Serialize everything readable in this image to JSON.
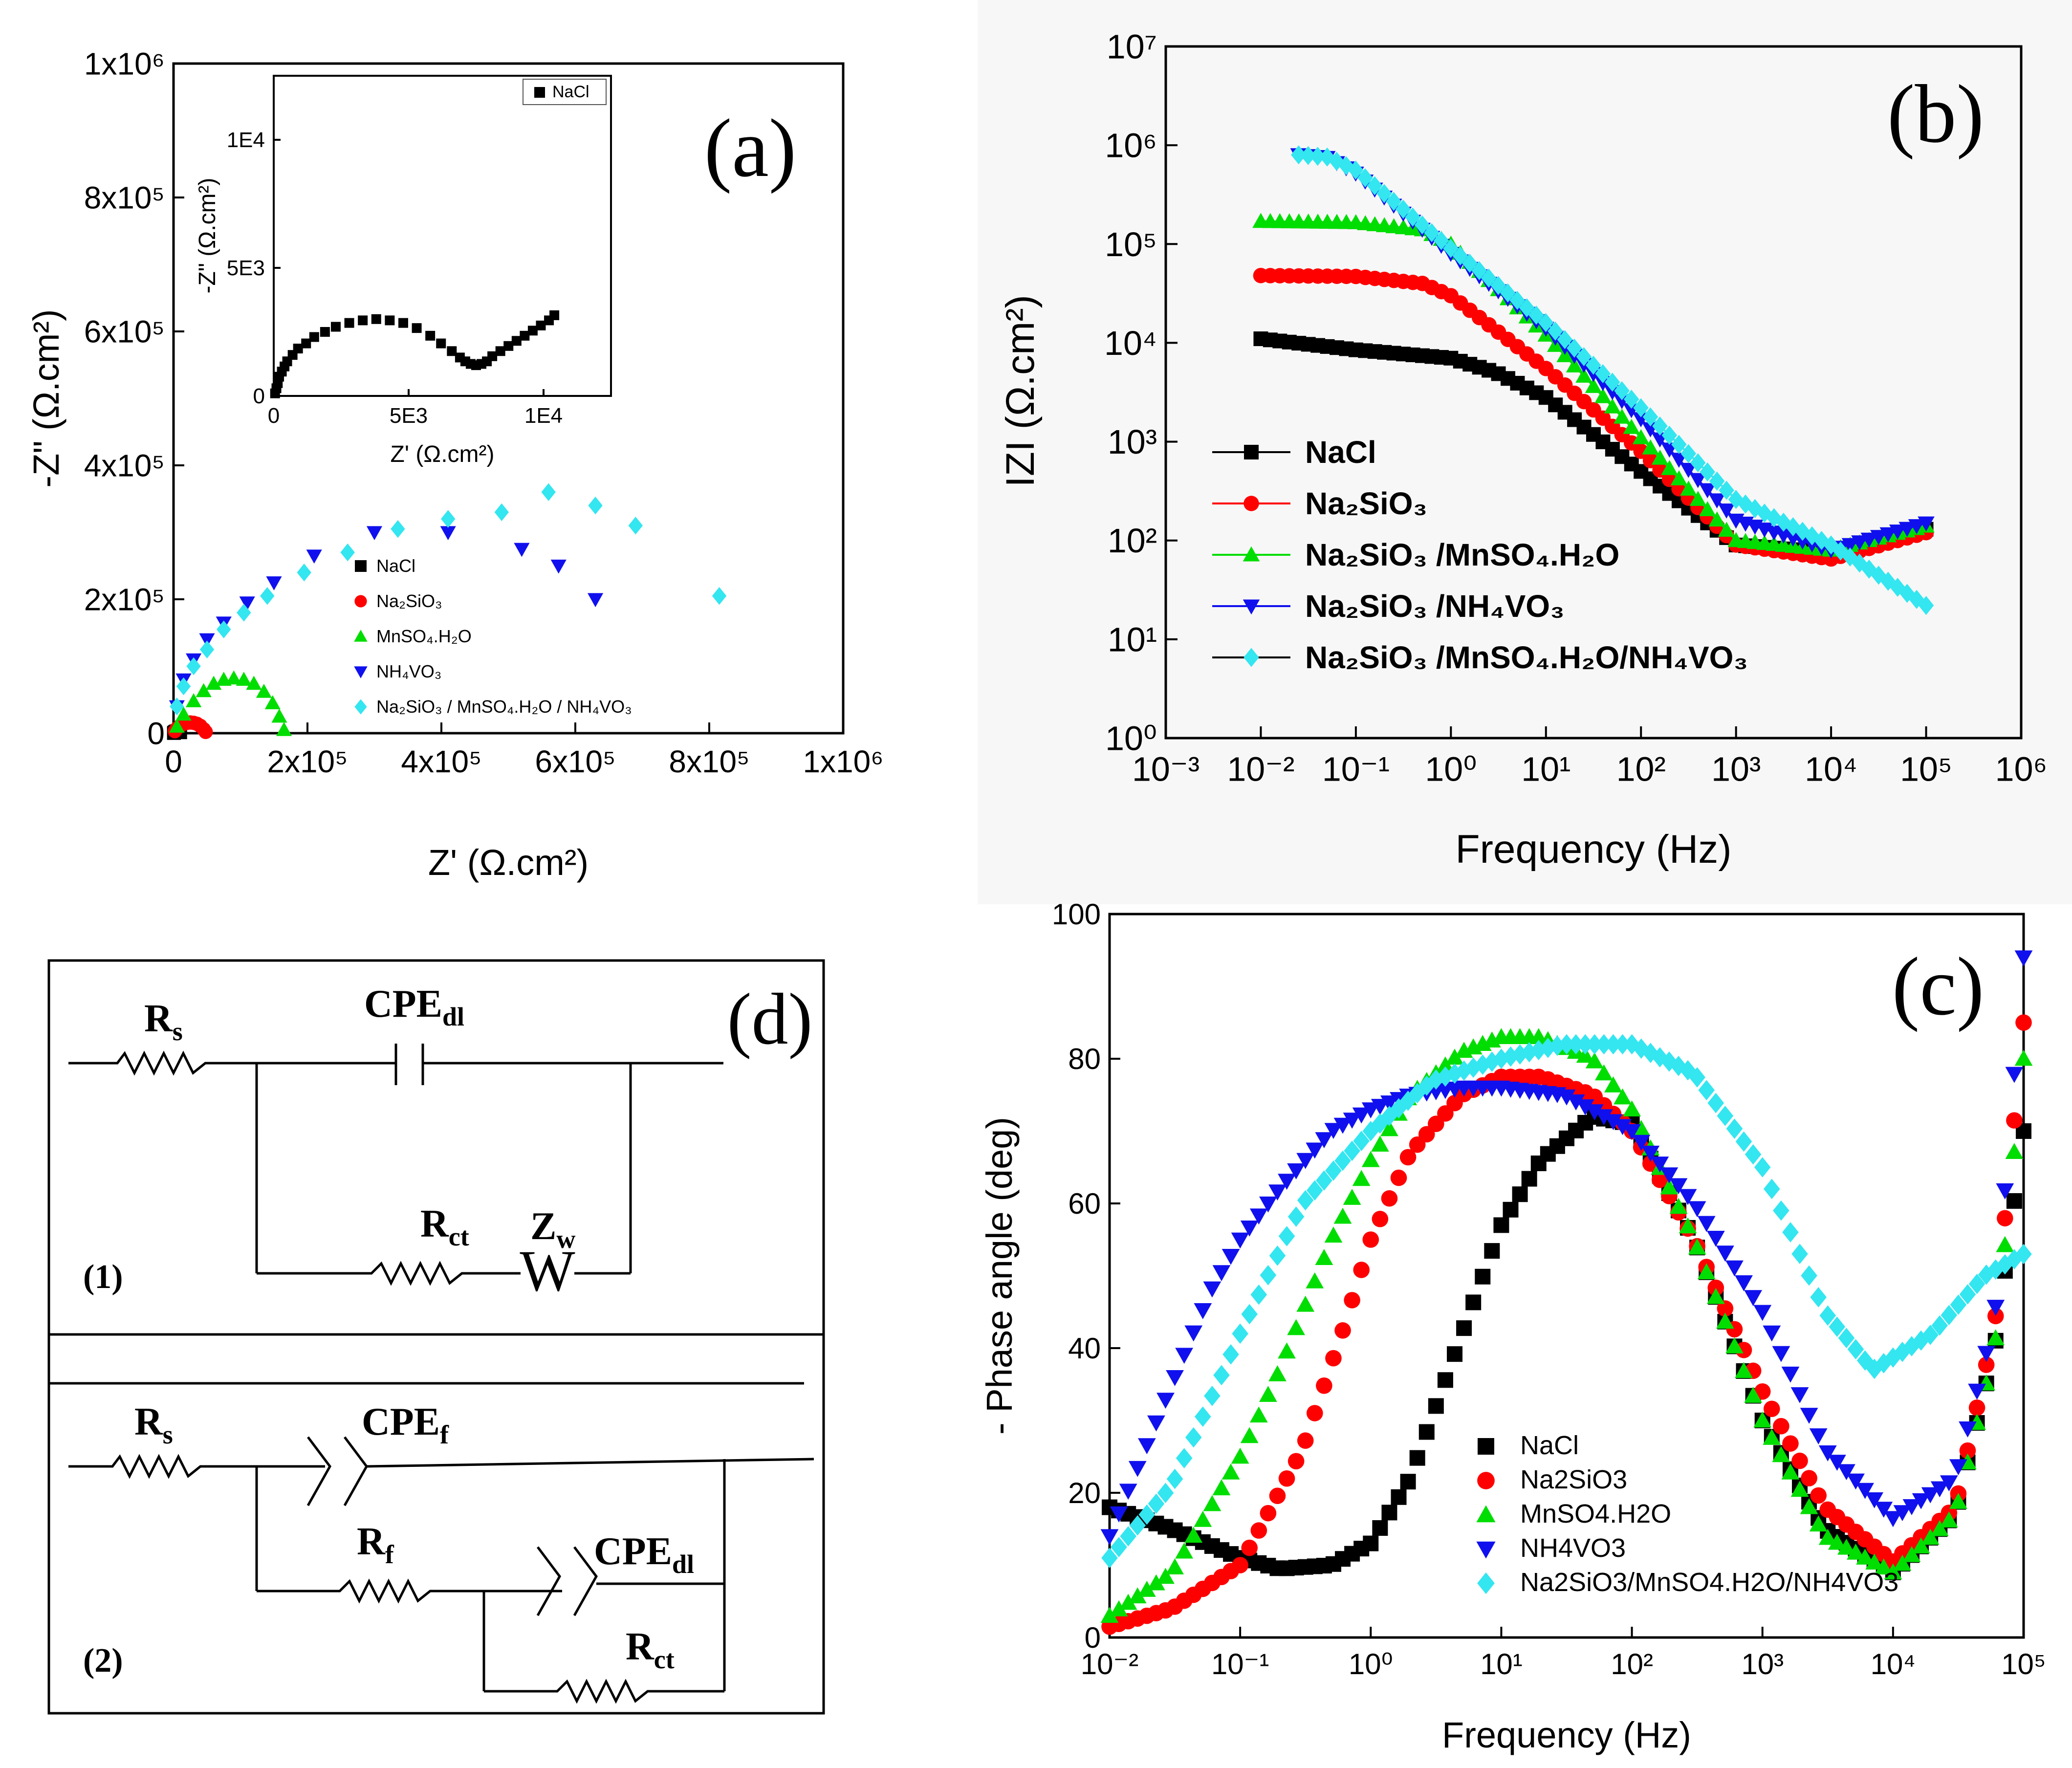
{
  "colors": {
    "NaCl": "#000000",
    "Na2SiO3": "#ff0000",
    "MnSO4": "#00dd00",
    "NH4VO3": "#1010ee",
    "mix": "#33e6f0"
  },
  "chart_data": [
    {
      "id": "a",
      "panel_label": "(a)",
      "type": "scatter",
      "title": "",
      "xlabel": "Z' (Ω.cm²)",
      "ylabel": "-Z\" (Ω.cm²)",
      "xlim": [
        0,
        1000000
      ],
      "ylim": [
        0,
        1000000
      ],
      "x_ticks": [
        "0",
        "2x10⁵",
        "4x10⁵",
        "6x10⁵",
        "8x10⁵",
        "1x10⁶"
      ],
      "y_ticks": [
        "0",
        "2x10⁵",
        "4x10⁵",
        "6x10⁵",
        "8x10⁵",
        "1x10⁶"
      ],
      "legend": [
        "NaCl",
        "Na₂SiO₃",
        "MnSO₄.H₂O",
        "NH₄VO₃",
        "Na₂SiO₃ / MnSO₄.H₂O / NH₄VO₃"
      ],
      "series": [
        {
          "name": "NaCl",
          "marker": "square",
          "color": "#000000",
          "x": [
            500,
            1000,
            2000,
            3000,
            4000,
            5000,
            6000,
            7000,
            8000,
            9000,
            10000
          ],
          "y": [
            200,
            800,
            1600,
            2300,
            2700,
            2900,
            3000,
            2900,
            2600,
            2000,
            1300
          ]
        },
        {
          "name": "Na₂SiO₃",
          "marker": "circle",
          "color": "#ff0000",
          "x": [
            2000,
            5000,
            10000,
            15000,
            20000,
            25000,
            30000,
            35000,
            40000,
            45000,
            48000
          ],
          "y": [
            3000,
            7000,
            11000,
            14000,
            15500,
            16000,
            15500,
            14000,
            11000,
            6000,
            2000
          ]
        },
        {
          "name": "MnSO₄.H₂O",
          "marker": "triangle-up",
          "color": "#00dd00",
          "x": [
            5000,
            15000,
            30000,
            45000,
            60000,
            75000,
            90000,
            105000,
            120000,
            135000,
            148000,
            158000,
            165000
          ],
          "y": [
            10000,
            28000,
            48000,
            63000,
            74000,
            80000,
            82000,
            80000,
            74000,
            62000,
            45000,
            25000,
            5000
          ]
        },
        {
          "name": "NH₄VO₃",
          "marker": "triangle-down",
          "color": "#1010ee",
          "x": [
            5000,
            15000,
            30000,
            50000,
            75000,
            110000,
            150000,
            210000,
            300000,
            410000,
            520000,
            575000,
            630000
          ],
          "y": [
            40000,
            80000,
            110000,
            140000,
            165000,
            195000,
            225000,
            265000,
            300000,
            300000,
            275000,
            250000,
            200000
          ]
        },
        {
          "name": "Na₂SiO₃ / MnSO₄.H₂O / NH₄VO₃",
          "marker": "diamond",
          "color": "#33e6f0",
          "x": [
            5000,
            15000,
            30000,
            50000,
            75000,
            105000,
            140000,
            195000,
            260000,
            335000,
            410000,
            490000,
            560000,
            630000,
            690000,
            815000
          ],
          "y": [
            40000,
            70000,
            100000,
            125000,
            155000,
            180000,
            205000,
            240000,
            270000,
            305000,
            320000,
            330000,
            360000,
            340000,
            310000,
            205000
          ]
        }
      ]
    },
    {
      "id": "a-inset",
      "type": "scatter",
      "xlabel": "Z' (Ω.cm²)",
      "ylabel": "-Z\" (Ω.cm²)",
      "xlim": [
        0,
        12500
      ],
      "ylim": [
        0,
        12500
      ],
      "x_ticks": [
        "0",
        "5E3",
        "1E4"
      ],
      "y_ticks": [
        "0",
        "5E3",
        "1E4"
      ],
      "legend": [
        "NaCl"
      ],
      "series": [
        {
          "name": "NaCl",
          "marker": "square",
          "color": "#000000",
          "x": [
            50,
            100,
            150,
            200,
            300,
            400,
            500,
            700,
            900,
            1200,
            1500,
            1900,
            2300,
            2800,
            3300,
            3800,
            4300,
            4800,
            5300,
            5800,
            6200,
            6600,
            6900,
            7100,
            7300,
            7500,
            7700,
            7900,
            8100,
            8400,
            8700,
            9000,
            9300,
            9600,
            9900,
            10200,
            10400
          ],
          "y": [
            100,
            300,
            500,
            750,
            950,
            1150,
            1350,
            1600,
            1850,
            2050,
            2300,
            2500,
            2700,
            2850,
            2950,
            3000,
            2950,
            2850,
            2650,
            2350,
            2050,
            1750,
            1500,
            1350,
            1250,
            1200,
            1250,
            1350,
            1550,
            1750,
            1950,
            2150,
            2350,
            2550,
            2750,
            2950,
            3150
          ]
        }
      ]
    },
    {
      "id": "b",
      "panel_label": "(b)",
      "type": "line",
      "x_scale": "log",
      "y_scale": "log",
      "xlabel": "Frequency (Hz)",
      "ylabel": "IZI (Ω.cm²)",
      "xlim": [
        0.001,
        1000000
      ],
      "ylim": [
        1,
        10000000
      ],
      "x_ticks": [
        "10⁻³",
        "10⁻²",
        "10⁻¹",
        "10⁰",
        "10¹",
        "10²",
        "10³",
        "10⁴",
        "10⁵",
        "10⁶"
      ],
      "y_ticks": [
        "10⁰",
        "10¹",
        "10²",
        "10³",
        "10⁴",
        "10⁵",
        "10⁶",
        "10⁷"
      ],
      "legend": [
        "NaCl",
        "Na₂SiO₃",
        "Na₂SiO₃ /MnSO₄.H₂O",
        "Na₂SiO₃ /NH₄VO₃",
        "Na₂SiO₃ /MnSO₄.H₂O/NH₄VO₃"
      ],
      "series": [
        {
          "name": "NaCl",
          "marker": "square",
          "color": "#000000",
          "x": [
            0.01,
            0.1,
            1,
            3,
            10,
            100,
            1000,
            10000,
            100000
          ],
          "y": [
            11000,
            8500,
            7000,
            5000,
            2800,
            500,
            90,
            75,
            130
          ]
        },
        {
          "name": "Na₂SiO₃",
          "marker": "circle",
          "color": "#ff0000",
          "x": [
            0.01,
            0.1,
            0.5,
            1,
            10,
            100,
            1000,
            10000,
            100000
          ],
          "y": [
            48000,
            47000,
            40000,
            30000,
            5500,
            800,
            90,
            65,
            120
          ]
        },
        {
          "name": "Na₂SiO₃ /MnSO₄.H₂O",
          "marker": "triangle-up",
          "color": "#00dd00",
          "x": [
            0.01,
            0.1,
            0.5,
            1,
            10,
            100,
            1000,
            10000,
            100000
          ],
          "y": [
            170000,
            165000,
            140000,
            100000,
            12000,
            1100,
            100,
            80,
            140
          ]
        },
        {
          "name": "Na₂SiO₃ /NH₄VO₃",
          "marker": "triangle-down",
          "color": "#1010ee",
          "x": [
            0.025,
            0.05,
            0.1,
            1,
            10,
            100,
            1000,
            10000,
            100000
          ],
          "y": [
            800000,
            750000,
            520000,
            80000,
            14000,
            1700,
            160,
            80,
            150
          ]
        },
        {
          "name": "Na₂SiO₃ /MnSO₄.H₂O/NH₄VO₃",
          "marker": "diamond",
          "color": "#33e6f0",
          "x": [
            0.025,
            0.05,
            0.1,
            1,
            10,
            100,
            1000,
            10000,
            100000
          ],
          "y": [
            800000,
            760000,
            560000,
            90000,
            16000,
            2200,
            260,
            90,
            22
          ]
        }
      ]
    },
    {
      "id": "c",
      "panel_label": "(c)",
      "type": "scatter",
      "x_scale": "log",
      "xlabel": "Frequency (Hz)",
      "ylabel": "- Phase angle (deg)",
      "xlim": [
        0.01,
        100000
      ],
      "ylim": [
        0,
        100
      ],
      "x_ticks": [
        "10⁻²",
        "10⁻¹",
        "10⁰",
        "10¹",
        "10²",
        "10³",
        "10⁴",
        "10⁵"
      ],
      "y_ticks": [
        "0",
        "20",
        "40",
        "60",
        "80",
        "100"
      ],
      "legend": [
        "NaCl",
        "Na2SiO3",
        "MnSO4.H2O",
        "NH4VO3",
        "Na2SiO3/MnSO4.H2O/NH4VO3"
      ],
      "series": [
        {
          "name": "NaCl",
          "marker": "square",
          "color": "#000000",
          "x": [
            0.01,
            0.03,
            0.1,
            0.2,
            0.5,
            1,
            2,
            5,
            10,
            20,
            50,
            100,
            300,
            1000,
            3000,
            10000,
            30000,
            60000,
            100000
          ],
          "y": [
            18,
            15,
            11,
            9.5,
            10,
            13,
            22,
            42,
            57,
            66,
            72,
            71,
            55,
            30,
            15,
            9,
            17,
            40,
            70
          ]
        },
        {
          "name": "Na2SiO3",
          "marker": "circle",
          "color": "#ff0000",
          "x": [
            0.01,
            0.03,
            0.1,
            0.3,
            0.6,
            1,
            2,
            5,
            10,
            20,
            50,
            100,
            300,
            1000,
            3000,
            10000,
            30000,
            60000,
            100000
          ],
          "y": [
            1.5,
            4,
            10,
            26,
            42,
            55,
            67,
            75,
            77.5,
            77.5,
            75,
            70,
            55,
            34,
            18,
            10.5,
            18,
            43,
            85
          ]
        },
        {
          "name": "MnSO4.H2O",
          "marker": "triangle-up",
          "color": "#00dd00",
          "x": [
            0.01,
            0.03,
            0.1,
            0.2,
            0.5,
            1,
            2,
            5,
            10,
            20,
            50,
            100,
            300,
            1000,
            3000,
            10000,
            30000,
            60000,
            100000
          ],
          "y": [
            3,
            9,
            25,
            37,
            55,
            66,
            75,
            81,
            83,
            83,
            80,
            73,
            55,
            30,
            14,
            9,
            17,
            40,
            80
          ]
        },
        {
          "name": "NH4VO3",
          "marker": "triangle-down",
          "color": "#1010ee",
          "x": [
            0.01,
            0.03,
            0.06,
            0.1,
            0.2,
            0.5,
            1,
            2,
            5,
            10,
            30,
            100,
            300,
            1000,
            3000,
            10000,
            30000,
            60000,
            100000
          ],
          "y": [
            14,
            35,
            48,
            55,
            62,
            70,
            73,
            75,
            76,
            76,
            75,
            70,
            60,
            45,
            26,
            16.5,
            22,
            44,
            94
          ]
        },
        {
          "name": "Na2SiO3/MnSO4.H2O/NH4VO3",
          "marker": "diamond",
          "color": "#33e6f0",
          "x": [
            0.01,
            0.03,
            0.1,
            0.3,
            1,
            3,
            10,
            30,
            100,
            300,
            1000,
            3000,
            7000,
            20000,
            50000,
            100000
          ],
          "y": [
            11,
            21,
            42,
            60,
            70,
            77,
            80,
            82,
            82,
            78,
            65,
            45,
            37,
            42,
            50,
            53
          ]
        }
      ]
    }
  ],
  "circuit": {
    "panel_label": "(d)",
    "circuit1_label": "(1)",
    "circuit2_label": "(2)",
    "c1": {
      "rs": "R",
      "rs_sub": "s",
      "cpe": "CPE",
      "cpe_sub": "dl",
      "rct": "R",
      "rct_sub": "ct",
      "zw": "Z",
      "zw_sub": "w",
      "w_symbol": "W"
    },
    "c2": {
      "rs": "R",
      "rs_sub": "s",
      "cpef": "CPE",
      "cpef_sub": "f",
      "rf": "R",
      "rf_sub": "f",
      "cpedl": "CPE",
      "cpedl_sub": "dl",
      "rct": "R",
      "rct_sub": "ct"
    }
  }
}
